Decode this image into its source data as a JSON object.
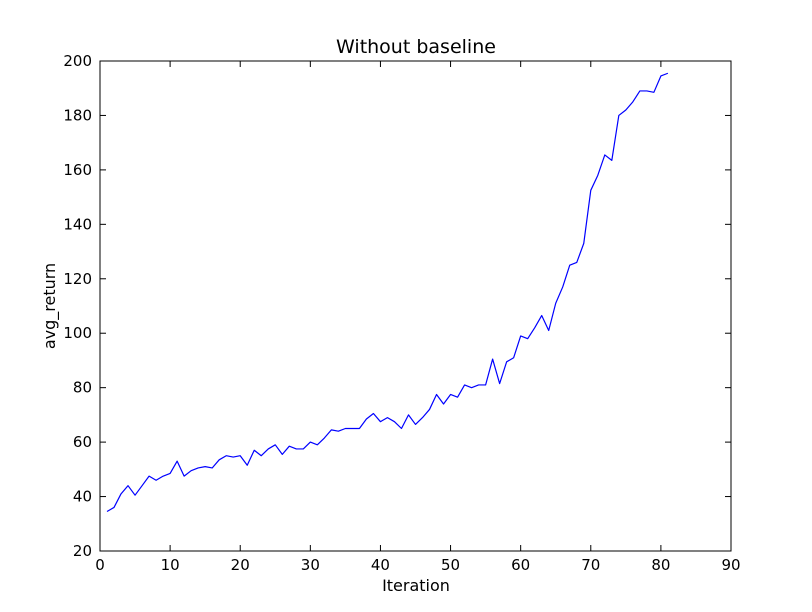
{
  "chart_data": {
    "type": "line",
    "title": "Without baseline",
    "xlabel": "Iteration",
    "ylabel": "avg_return",
    "xlim": [
      0,
      90
    ],
    "ylim": [
      20,
      200
    ],
    "xticks": [
      "0",
      "10",
      "20",
      "30",
      "40",
      "50",
      "60",
      "70",
      "80",
      "90"
    ],
    "yticks": [
      "20",
      "40",
      "60",
      "80",
      "100",
      "120",
      "140",
      "160",
      "180",
      "200"
    ],
    "grid": false,
    "legend": "none",
    "series": [
      {
        "color": "#0000ff",
        "x": [
          1,
          2,
          3,
          4,
          5,
          6,
          7,
          8,
          9,
          10,
          11,
          12,
          13,
          14,
          15,
          16,
          17,
          18,
          19,
          20,
          21,
          22,
          23,
          24,
          25,
          26,
          27,
          28,
          29,
          30,
          31,
          32,
          33,
          34,
          35,
          36,
          37,
          38,
          39,
          40,
          41,
          42,
          43,
          44,
          45,
          46,
          47,
          48,
          49,
          50,
          51,
          52,
          53,
          54,
          55,
          56,
          57,
          58,
          59,
          60,
          61,
          62,
          63,
          64,
          65,
          66,
          67,
          68,
          69,
          70,
          71,
          72,
          73,
          74,
          75,
          76,
          77,
          78,
          79,
          80,
          81
        ],
        "y": [
          34.5,
          36,
          41,
          44,
          40.5,
          44,
          47.5,
          46,
          47.5,
          48.5,
          53,
          47.5,
          49.5,
          50.5,
          51,
          50.5,
          53.5,
          55,
          54.5,
          55,
          51.5,
          57,
          55,
          57.5,
          59,
          55.5,
          58.5,
          57.5,
          57.5,
          60,
          59,
          61.5,
          64.5,
          64,
          65,
          65,
          65,
          68.5,
          70.5,
          67.5,
          69,
          67.5,
          65,
          70,
          66.5,
          69,
          72,
          77.5,
          74,
          77.5,
          76.5,
          81,
          80,
          81,
          81,
          90.5,
          81.5,
          89.5,
          91,
          99,
          98,
          102,
          106.5,
          101,
          111,
          117,
          125,
          126,
          133,
          152.5,
          158,
          165.5,
          163.5,
          180,
          182,
          185,
          189,
          189,
          188.5,
          194.5,
          195.5
        ]
      }
    ]
  }
}
